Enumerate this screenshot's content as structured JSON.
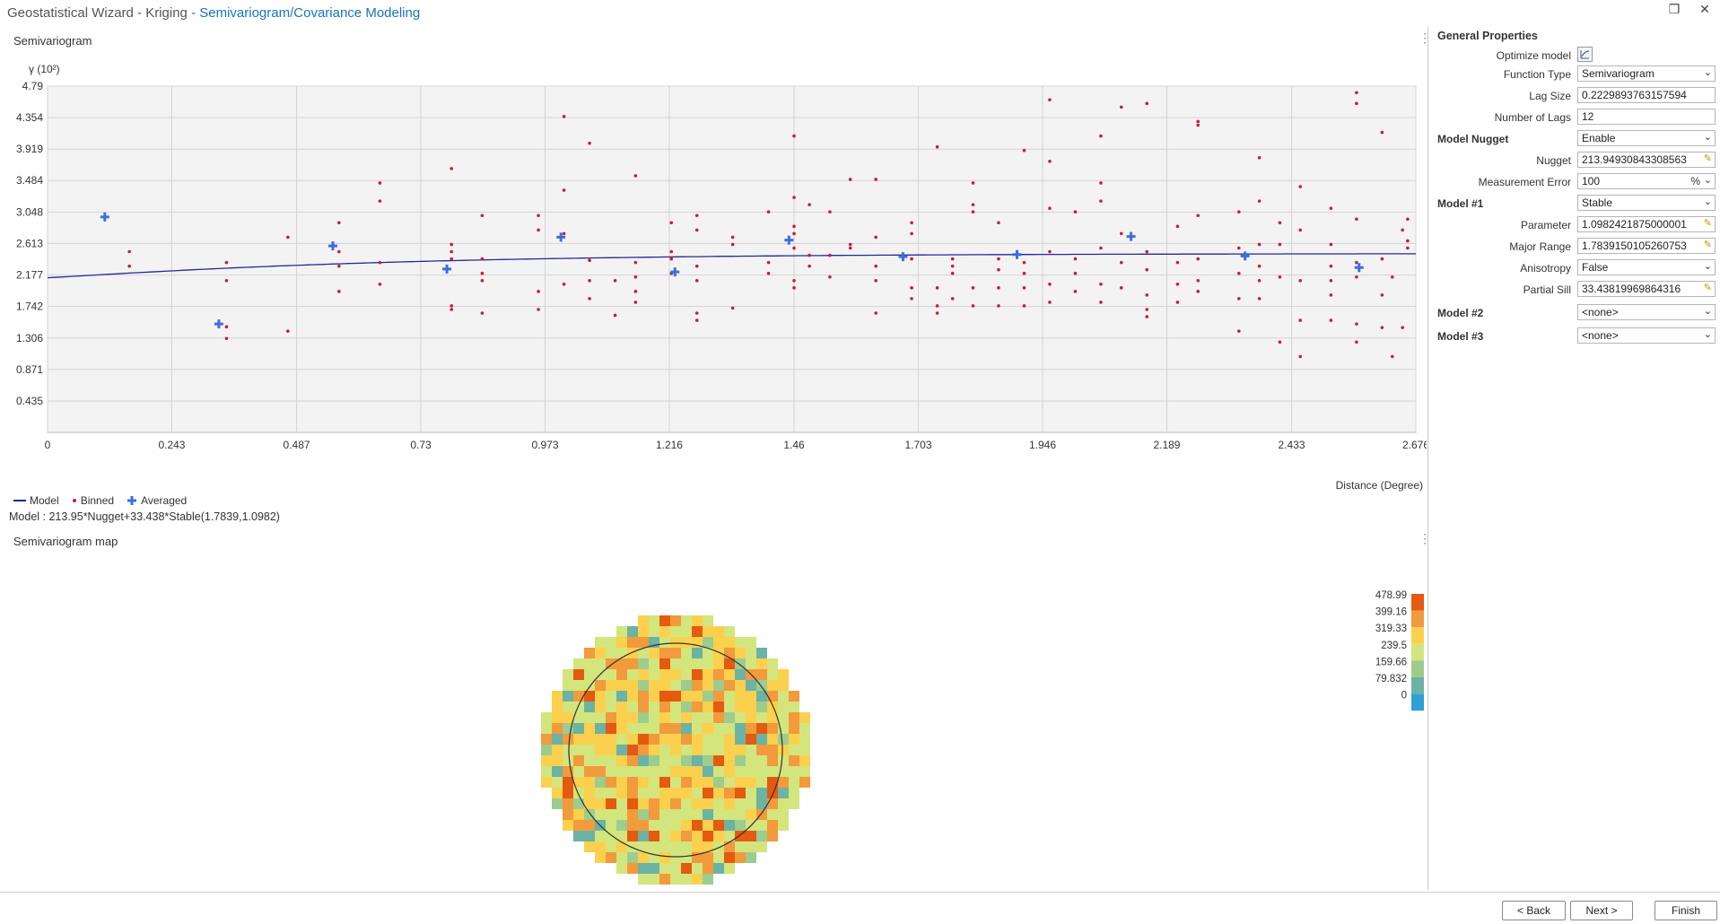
{
  "window": {
    "title": "Geostatistical Wizard - Kriging",
    "separator": " - ",
    "subtitle": "Semivariogram/Covariance Modeling"
  },
  "semivariogram": {
    "panel_title": "Semivariogram",
    "legend": {
      "model": "Model",
      "binned": "Binned",
      "averaged": "Averaged"
    },
    "model_text": "Model : 213.95*Nugget+33.438*Stable(1.7839,1.0982)"
  },
  "chart_data": {
    "type": "scatter",
    "ylabel": "γ (10²)",
    "xlabel": "Distance (Degree)",
    "xlim": [
      0,
      2.676
    ],
    "ylim": [
      0,
      4.79
    ],
    "x_ticks": [
      "0",
      "0.243",
      "0.487",
      "0.73",
      "0.973",
      "1.216",
      "1.46",
      "1.703",
      "1.946",
      "2.189",
      "2.433",
      "2.676"
    ],
    "y_ticks": [
      "0.435",
      "0.871",
      "1.306",
      "1.742",
      "2.177",
      "2.613",
      "3.048",
      "3.484",
      "3.919",
      "4.354",
      "4.79"
    ],
    "grid": true,
    "legend_position": "bottom-left",
    "series": [
      {
        "name": "Model",
        "kind": "line",
        "color": "#1f2a99",
        "nugget": 2.1395,
        "partial_sill": 0.33438,
        "range": 1.7839,
        "parameter": 1.0982
      },
      {
        "name": "Averaged",
        "kind": "plus",
        "color": "#3d6fdb",
        "points": [
          [
            0.112,
            2.98
          ],
          [
            0.335,
            1.5
          ],
          [
            0.558,
            2.58
          ],
          [
            0.781,
            2.26
          ],
          [
            1.004,
            2.7
          ],
          [
            1.227,
            2.22
          ],
          [
            1.45,
            2.66
          ],
          [
            1.673,
            2.43
          ],
          [
            1.896,
            2.46
          ],
          [
            2.119,
            2.71
          ],
          [
            2.342,
            2.44
          ],
          [
            2.565,
            2.28
          ]
        ]
      },
      {
        "name": "Binned",
        "kind": "dot",
        "color": "#d0183c",
        "points": [
          [
            0.16,
            2.3
          ],
          [
            0.16,
            2.5
          ],
          [
            0.35,
            2.35
          ],
          [
            0.35,
            2.1
          ],
          [
            0.35,
            1.46
          ],
          [
            0.35,
            1.3
          ],
          [
            0.47,
            2.7
          ],
          [
            0.47,
            1.4
          ],
          [
            0.57,
            2.9
          ],
          [
            0.57,
            2.5
          ],
          [
            0.57,
            2.3
          ],
          [
            0.57,
            1.95
          ],
          [
            0.65,
            3.45
          ],
          [
            0.65,
            3.2
          ],
          [
            0.65,
            2.35
          ],
          [
            0.65,
            2.05
          ],
          [
            0.79,
            3.65
          ],
          [
            0.79,
            2.6
          ],
          [
            0.79,
            2.5
          ],
          [
            0.79,
            2.4
          ],
          [
            0.79,
            1.75
          ],
          [
            0.79,
            1.7
          ],
          [
            0.85,
            3.0
          ],
          [
            0.85,
            2.4
          ],
          [
            0.85,
            2.2
          ],
          [
            0.85,
            2.1
          ],
          [
            0.85,
            1.65
          ],
          [
            0.96,
            3.0
          ],
          [
            0.96,
            2.8
          ],
          [
            0.96,
            1.7
          ],
          [
            0.96,
            1.95
          ],
          [
            1.01,
            4.37
          ],
          [
            1.01,
            3.35
          ],
          [
            1.01,
            2.75
          ],
          [
            1.01,
            2.05
          ],
          [
            1.06,
            4.0
          ],
          [
            1.06,
            2.38
          ],
          [
            1.06,
            2.1
          ],
          [
            1.06,
            1.85
          ],
          [
            1.11,
            2.1
          ],
          [
            1.11,
            1.62
          ],
          [
            1.15,
            3.55
          ],
          [
            1.15,
            2.35
          ],
          [
            1.15,
            2.15
          ],
          [
            1.15,
            1.95
          ],
          [
            1.15,
            1.8
          ],
          [
            1.22,
            2.9
          ],
          [
            1.22,
            2.5
          ],
          [
            1.22,
            2.4
          ],
          [
            1.22,
            2.2
          ],
          [
            1.27,
            3.0
          ],
          [
            1.27,
            2.8
          ],
          [
            1.27,
            2.3
          ],
          [
            1.27,
            2.1
          ],
          [
            1.27,
            1.65
          ],
          [
            1.27,
            1.55
          ],
          [
            1.34,
            2.7
          ],
          [
            1.34,
            2.6
          ],
          [
            1.34,
            1.72
          ],
          [
            1.41,
            3.05
          ],
          [
            1.41,
            2.35
          ],
          [
            1.41,
            2.2
          ],
          [
            1.46,
            4.1
          ],
          [
            1.46,
            3.25
          ],
          [
            1.46,
            2.85
          ],
          [
            1.46,
            2.75
          ],
          [
            1.46,
            2.55
          ],
          [
            1.46,
            2.1
          ],
          [
            1.46,
            2.0
          ],
          [
            1.49,
            3.15
          ],
          [
            1.49,
            2.45
          ],
          [
            1.49,
            2.3
          ],
          [
            1.53,
            3.05
          ],
          [
            1.53,
            2.45
          ],
          [
            1.53,
            2.15
          ],
          [
            1.57,
            3.5
          ],
          [
            1.57,
            2.6
          ],
          [
            1.57,
            2.55
          ],
          [
            1.62,
            3.5
          ],
          [
            1.62,
            2.7
          ],
          [
            1.62,
            2.3
          ],
          [
            1.62,
            2.1
          ],
          [
            1.62,
            1.65
          ],
          [
            1.69,
            2.9
          ],
          [
            1.69,
            2.75
          ],
          [
            1.69,
            2.4
          ],
          [
            1.69,
            2.0
          ],
          [
            1.69,
            1.85
          ],
          [
            1.74,
            3.95
          ],
          [
            1.74,
            2.0
          ],
          [
            1.74,
            1.75
          ],
          [
            1.74,
            1.65
          ],
          [
            1.77,
            2.4
          ],
          [
            1.77,
            2.3
          ],
          [
            1.77,
            2.2
          ],
          [
            1.77,
            1.85
          ],
          [
            1.81,
            3.45
          ],
          [
            1.81,
            3.15
          ],
          [
            1.81,
            3.05
          ],
          [
            1.81,
            2.0
          ],
          [
            1.81,
            1.75
          ],
          [
            1.86,
            2.9
          ],
          [
            1.86,
            2.4
          ],
          [
            1.86,
            2.25
          ],
          [
            1.86,
            2.0
          ],
          [
            1.86,
            1.75
          ],
          [
            1.91,
            3.9
          ],
          [
            1.91,
            2.35
          ],
          [
            1.91,
            2.2
          ],
          [
            1.91,
            2.0
          ],
          [
            1.91,
            1.75
          ],
          [
            1.96,
            4.6
          ],
          [
            1.96,
            3.75
          ],
          [
            1.96,
            3.1
          ],
          [
            1.96,
            2.5
          ],
          [
            1.96,
            2.05
          ],
          [
            1.96,
            1.8
          ],
          [
            2.01,
            3.05
          ],
          [
            2.01,
            2.4
          ],
          [
            2.01,
            2.2
          ],
          [
            2.01,
            1.95
          ],
          [
            2.06,
            4.1
          ],
          [
            2.06,
            3.45
          ],
          [
            2.06,
            3.2
          ],
          [
            2.06,
            2.55
          ],
          [
            2.06,
            2.05
          ],
          [
            2.06,
            1.8
          ],
          [
            2.1,
            4.5
          ],
          [
            2.1,
            2.75
          ],
          [
            2.1,
            2.35
          ],
          [
            2.1,
            2.0
          ],
          [
            2.15,
            4.55
          ],
          [
            2.15,
            2.5
          ],
          [
            2.15,
            2.25
          ],
          [
            2.15,
            1.9
          ],
          [
            2.15,
            1.7
          ],
          [
            2.15,
            1.6
          ],
          [
            2.21,
            2.85
          ],
          [
            2.21,
            2.35
          ],
          [
            2.21,
            2.05
          ],
          [
            2.21,
            1.8
          ],
          [
            2.25,
            4.3
          ],
          [
            2.25,
            4.25
          ],
          [
            2.25,
            3.0
          ],
          [
            2.25,
            2.4
          ],
          [
            2.25,
            2.1
          ],
          [
            2.25,
            1.95
          ],
          [
            2.33,
            3.05
          ],
          [
            2.33,
            2.55
          ],
          [
            2.33,
            2.2
          ],
          [
            2.33,
            1.85
          ],
          [
            2.33,
            1.4
          ],
          [
            2.37,
            3.8
          ],
          [
            2.37,
            3.2
          ],
          [
            2.37,
            2.6
          ],
          [
            2.37,
            2.3
          ],
          [
            2.37,
            2.1
          ],
          [
            2.37,
            1.85
          ],
          [
            2.41,
            2.9
          ],
          [
            2.41,
            2.6
          ],
          [
            2.41,
            2.15
          ],
          [
            2.41,
            1.25
          ],
          [
            2.45,
            3.4
          ],
          [
            2.45,
            2.8
          ],
          [
            2.45,
            2.1
          ],
          [
            2.45,
            1.55
          ],
          [
            2.45,
            1.05
          ],
          [
            2.51,
            3.1
          ],
          [
            2.51,
            2.6
          ],
          [
            2.51,
            2.3
          ],
          [
            2.51,
            2.1
          ],
          [
            2.51,
            1.9
          ],
          [
            2.51,
            1.55
          ],
          [
            2.56,
            4.7
          ],
          [
            2.56,
            4.55
          ],
          [
            2.56,
            2.95
          ],
          [
            2.56,
            2.35
          ],
          [
            2.56,
            2.15
          ],
          [
            2.56,
            1.5
          ],
          [
            2.56,
            1.25
          ],
          [
            2.61,
            4.15
          ],
          [
            2.61,
            2.4
          ],
          [
            2.61,
            1.9
          ],
          [
            2.61,
            1.45
          ],
          [
            2.63,
            2.15
          ],
          [
            2.63,
            1.05
          ],
          [
            2.65,
            2.8
          ],
          [
            2.65,
            1.45
          ],
          [
            2.66,
            2.95
          ],
          [
            2.66,
            2.65
          ],
          [
            2.66,
            2.55
          ]
        ]
      }
    ]
  },
  "semivariogram_map": {
    "panel_title": "Semivariogram map",
    "legend_labels": [
      "478.99",
      "399.16",
      "319.33",
      "239.5",
      "159.66",
      "79.832",
      "0"
    ],
    "legend_colors": [
      "#e35a10",
      "#f29a3c",
      "#fbd04d",
      "#d3e57d",
      "#9ccc8e",
      "#6bb3a4",
      "#2f9fd6"
    ]
  },
  "properties": {
    "header": "General Properties",
    "optimize_label": "Optimize model",
    "function_type": {
      "label": "Function Type",
      "value": "Semivariogram"
    },
    "lag_size": {
      "label": "Lag Size",
      "value": "0.2229893763157594"
    },
    "number_of_lags": {
      "label": "Number of Lags",
      "value": "12"
    },
    "model_nugget": {
      "label": "Model Nugget",
      "value": "Enable"
    },
    "nugget": {
      "label": "Nugget",
      "value": "213.94930843308563"
    },
    "measurement_error": {
      "label": "Measurement Error",
      "value": "100",
      "unit": "%"
    },
    "model1": {
      "label": "Model #1",
      "value": "Stable"
    },
    "parameter": {
      "label": "Parameter",
      "value": "1.0982421875000001"
    },
    "major_range": {
      "label": "Major Range",
      "value": "1.7839150105260753"
    },
    "anisotropy": {
      "label": "Anisotropy",
      "value": "False"
    },
    "partial_sill": {
      "label": "Partial Sill",
      "value": "33.43819969864316"
    },
    "model2": {
      "label": "Model #2",
      "value": "<none>"
    },
    "model3": {
      "label": "Model #3",
      "value": "<none>"
    }
  },
  "buttons": {
    "back": "< Back",
    "next": "Next >",
    "finish": "Finish"
  }
}
